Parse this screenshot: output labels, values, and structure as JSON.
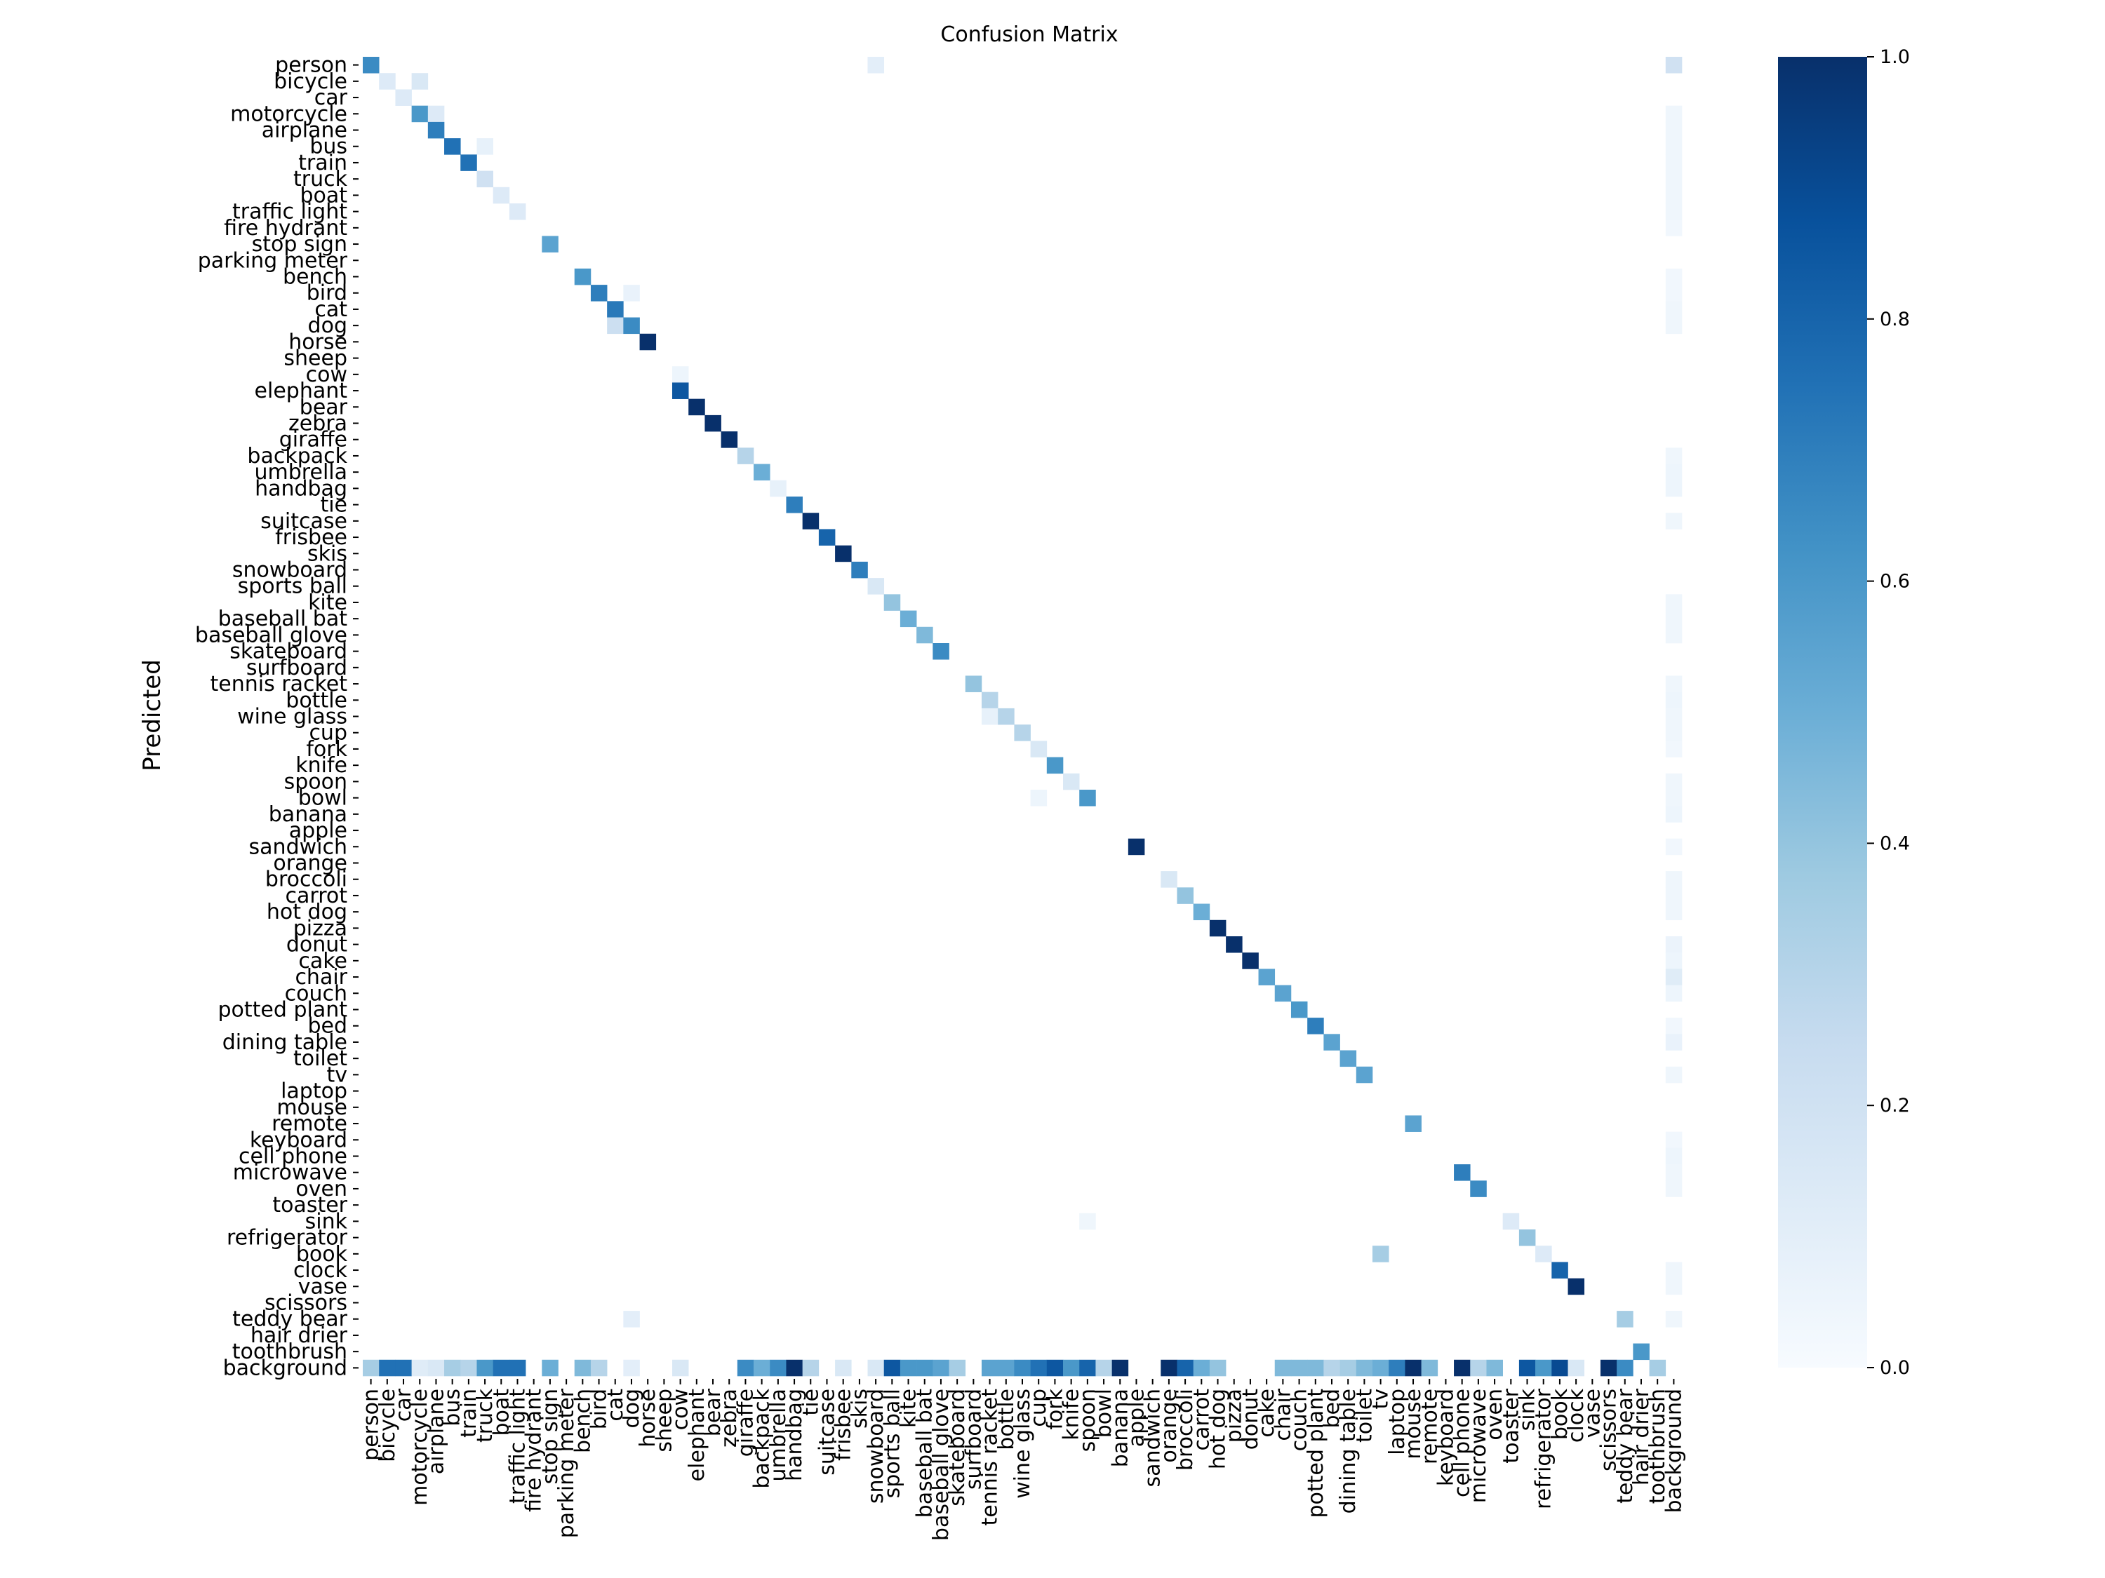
{
  "chart_data": {
    "type": "heatmap",
    "title": "Confusion Matrix",
    "ylabel": "Predicted",
    "xlabel": "",
    "categories": [
      "person",
      "bicycle",
      "car",
      "motorcycle",
      "airplane",
      "bus",
      "train",
      "truck",
      "boat",
      "traffic light",
      "fire hydrant",
      "stop sign",
      "parking meter",
      "bench",
      "bird",
      "cat",
      "dog",
      "horse",
      "sheep",
      "cow",
      "elephant",
      "bear",
      "zebra",
      "giraffe",
      "backpack",
      "umbrella",
      "handbag",
      "tie",
      "suitcase",
      "frisbee",
      "skis",
      "snowboard",
      "sports ball",
      "kite",
      "baseball bat",
      "baseball glove",
      "skateboard",
      "surfboard",
      "tennis racket",
      "bottle",
      "wine glass",
      "cup",
      "fork",
      "knife",
      "spoon",
      "bowl",
      "banana",
      "apple",
      "sandwich",
      "orange",
      "broccoli",
      "carrot",
      "hot dog",
      "pizza",
      "donut",
      "cake",
      "chair",
      "couch",
      "potted plant",
      "bed",
      "dining table",
      "toilet",
      "tv",
      "laptop",
      "mouse",
      "remote",
      "keyboard",
      "cell phone",
      "microwave",
      "oven",
      "toaster",
      "sink",
      "refrigerator",
      "book",
      "clock",
      "vase",
      "scissors",
      "teddy bear",
      "hair drier",
      "toothbrush",
      "background"
    ],
    "colormap": [
      "#f7fbff",
      "#deebf7",
      "#c6dbef",
      "#9ecae1",
      "#6baed6",
      "#4292c6",
      "#2171b5",
      "#08519c",
      "#08306b"
    ],
    "colorbar": {
      "min": 0.0,
      "max": 1.0,
      "ticks": [
        "0.0",
        "0.2",
        "0.4",
        "0.6",
        "0.8",
        "1.0"
      ]
    },
    "cells": [
      [
        0,
        0,
        0.65
      ],
      [
        0,
        31,
        0.1
      ],
      [
        0,
        80,
        0.2
      ],
      [
        1,
        1,
        0.13
      ],
      [
        1,
        3,
        0.15
      ],
      [
        2,
        2,
        0.13
      ],
      [
        3,
        3,
        0.6
      ],
      [
        3,
        4,
        0.13
      ],
      [
        3,
        80,
        0.04
      ],
      [
        4,
        4,
        0.7
      ],
      [
        4,
        80,
        0.04
      ],
      [
        5,
        5,
        0.75
      ],
      [
        5,
        7,
        0.08
      ],
      [
        5,
        80,
        0.04
      ],
      [
        6,
        6,
        0.75
      ],
      [
        6,
        80,
        0.04
      ],
      [
        7,
        7,
        0.2
      ],
      [
        7,
        80,
        0.04
      ],
      [
        8,
        8,
        0.13
      ],
      [
        8,
        80,
        0.04
      ],
      [
        9,
        9,
        0.13
      ],
      [
        9,
        80,
        0.04
      ],
      [
        10,
        80,
        0.03
      ],
      [
        11,
        11,
        0.55
      ],
      [
        13,
        13,
        0.6
      ],
      [
        13,
        80,
        0.03
      ],
      [
        14,
        14,
        0.7
      ],
      [
        14,
        16,
        0.07
      ],
      [
        14,
        80,
        0.03
      ],
      [
        15,
        15,
        0.72
      ],
      [
        15,
        80,
        0.04
      ],
      [
        16,
        15,
        0.22
      ],
      [
        16,
        16,
        0.65
      ],
      [
        16,
        80,
        0.04
      ],
      [
        17,
        17,
        1.0
      ],
      [
        19,
        19,
        0.05
      ],
      [
        20,
        19,
        0.85
      ],
      [
        21,
        20,
        1.0
      ],
      [
        22,
        21,
        1.0
      ],
      [
        23,
        22,
        1.0
      ],
      [
        24,
        23,
        0.3
      ],
      [
        24,
        80,
        0.04
      ],
      [
        25,
        24,
        0.5
      ],
      [
        25,
        80,
        0.05
      ],
      [
        26,
        25,
        0.08
      ],
      [
        26,
        80,
        0.05
      ],
      [
        27,
        26,
        0.7
      ],
      [
        28,
        27,
        1.0
      ],
      [
        28,
        80,
        0.04
      ],
      [
        29,
        28,
        0.8
      ],
      [
        30,
        29,
        1.0
      ],
      [
        31,
        30,
        0.7
      ],
      [
        32,
        31,
        0.15
      ],
      [
        33,
        32,
        0.4
      ],
      [
        33,
        80,
        0.04
      ],
      [
        34,
        33,
        0.5
      ],
      [
        34,
        80,
        0.04
      ],
      [
        35,
        34,
        0.45
      ],
      [
        35,
        80,
        0.04
      ],
      [
        36,
        35,
        0.65
      ],
      [
        38,
        37,
        0.4
      ],
      [
        38,
        80,
        0.04
      ],
      [
        39,
        38,
        0.3
      ],
      [
        39,
        80,
        0.05
      ],
      [
        40,
        38,
        0.08
      ],
      [
        40,
        39,
        0.3
      ],
      [
        40,
        80,
        0.04
      ],
      [
        41,
        40,
        0.3
      ],
      [
        41,
        80,
        0.04
      ],
      [
        42,
        41,
        0.15
      ],
      [
        42,
        80,
        0.03
      ],
      [
        43,
        42,
        0.6
      ],
      [
        44,
        43,
        0.15
      ],
      [
        44,
        80,
        0.04
      ],
      [
        45,
        41,
        0.05
      ],
      [
        45,
        44,
        0.6
      ],
      [
        45,
        80,
        0.04
      ],
      [
        46,
        80,
        0.05
      ],
      [
        48,
        47,
        1.0
      ],
      [
        48,
        80,
        0.03
      ],
      [
        50,
        49,
        0.15
      ],
      [
        50,
        80,
        0.04
      ],
      [
        51,
        50,
        0.4
      ],
      [
        51,
        80,
        0.04
      ],
      [
        52,
        51,
        0.5
      ],
      [
        52,
        80,
        0.04
      ],
      [
        53,
        52,
        1.0
      ],
      [
        54,
        53,
        1.0
      ],
      [
        54,
        80,
        0.06
      ],
      [
        55,
        54,
        1.0
      ],
      [
        55,
        80,
        0.05
      ],
      [
        56,
        55,
        0.55
      ],
      [
        56,
        80,
        0.12
      ],
      [
        57,
        56,
        0.55
      ],
      [
        57,
        80,
        0.05
      ],
      [
        58,
        57,
        0.6
      ],
      [
        59,
        58,
        0.7
      ],
      [
        59,
        80,
        0.03
      ],
      [
        60,
        59,
        0.55
      ],
      [
        60,
        80,
        0.07
      ],
      [
        61,
        60,
        0.55
      ],
      [
        62,
        61,
        0.55
      ],
      [
        62,
        80,
        0.04
      ],
      [
        65,
        64,
        0.55
      ],
      [
        66,
        80,
        0.03
      ],
      [
        67,
        80,
        0.05
      ],
      [
        68,
        67,
        0.7
      ],
      [
        68,
        80,
        0.04
      ],
      [
        69,
        68,
        0.65
      ],
      [
        69,
        80,
        0.04
      ],
      [
        71,
        44,
        0.04
      ],
      [
        71,
        70,
        0.13
      ],
      [
        72,
        71,
        0.4
      ],
      [
        73,
        62,
        0.35
      ],
      [
        73,
        72,
        0.13
      ],
      [
        74,
        73,
        0.8
      ],
      [
        74,
        80,
        0.04
      ],
      [
        75,
        74,
        1.0
      ],
      [
        75,
        80,
        0.04
      ],
      [
        77,
        16,
        0.1
      ],
      [
        77,
        77,
        0.35
      ],
      [
        77,
        80,
        0.04
      ],
      [
        79,
        78,
        0.6
      ],
      [
        80,
        0,
        0.35
      ],
      [
        80,
        1,
        0.75
      ],
      [
        80,
        2,
        0.75
      ],
      [
        80,
        3,
        0.12
      ],
      [
        80,
        4,
        0.15
      ],
      [
        80,
        5,
        0.35
      ],
      [
        80,
        6,
        0.3
      ],
      [
        80,
        7,
        0.6
      ],
      [
        80,
        8,
        0.75
      ],
      [
        80,
        9,
        0.75
      ],
      [
        80,
        11,
        0.5
      ],
      [
        80,
        13,
        0.45
      ],
      [
        80,
        14,
        0.3
      ],
      [
        80,
        16,
        0.1
      ],
      [
        80,
        19,
        0.15
      ],
      [
        80,
        23,
        0.65
      ],
      [
        80,
        24,
        0.5
      ],
      [
        80,
        25,
        0.65
      ],
      [
        80,
        26,
        1.0
      ],
      [
        80,
        27,
        0.3
      ],
      [
        80,
        29,
        0.15
      ],
      [
        80,
        31,
        0.15
      ],
      [
        80,
        32,
        0.85
      ],
      [
        80,
        33,
        0.6
      ],
      [
        80,
        34,
        0.6
      ],
      [
        80,
        35,
        0.55
      ],
      [
        80,
        36,
        0.35
      ],
      [
        80,
        38,
        0.55
      ],
      [
        80,
        39,
        0.55
      ],
      [
        80,
        40,
        0.65
      ],
      [
        80,
        41,
        0.75
      ],
      [
        80,
        42,
        0.85
      ],
      [
        80,
        43,
        0.6
      ],
      [
        80,
        44,
        0.8
      ],
      [
        80,
        45,
        0.3
      ],
      [
        80,
        46,
        1.0
      ],
      [
        80,
        49,
        1.0
      ],
      [
        80,
        50,
        0.8
      ],
      [
        80,
        51,
        0.5
      ],
      [
        80,
        52,
        0.4
      ],
      [
        80,
        56,
        0.45
      ],
      [
        80,
        57,
        0.45
      ],
      [
        80,
        58,
        0.45
      ],
      [
        80,
        59,
        0.3
      ],
      [
        80,
        60,
        0.35
      ],
      [
        80,
        61,
        0.45
      ],
      [
        80,
        62,
        0.5
      ],
      [
        80,
        63,
        0.7
      ],
      [
        80,
        64,
        1.0
      ],
      [
        80,
        65,
        0.45
      ],
      [
        80,
        67,
        1.0
      ],
      [
        80,
        68,
        0.3
      ],
      [
        80,
        69,
        0.45
      ],
      [
        80,
        71,
        0.85
      ],
      [
        80,
        72,
        0.6
      ],
      [
        80,
        73,
        0.9
      ],
      [
        80,
        74,
        0.15
      ],
      [
        80,
        76,
        1.0
      ],
      [
        80,
        77,
        0.65
      ],
      [
        80,
        79,
        0.35
      ]
    ]
  }
}
